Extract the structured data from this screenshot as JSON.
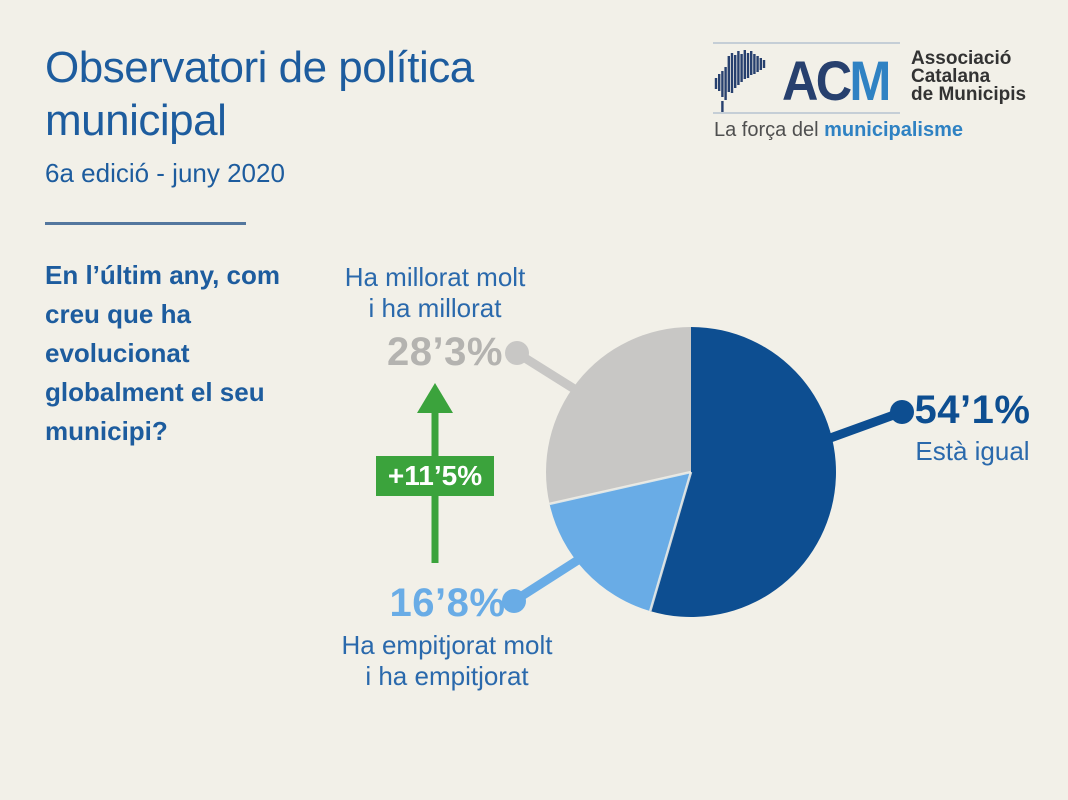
{
  "slide": {
    "title": "Observatori de política\nmunicipal",
    "subtitle": "6a edició - juny 2020",
    "question": "En l’últim any, com\ncreu que ha\nevolucionat\nglobalment el seu\nmunicipi?"
  },
  "logo": {
    "acronym_dark": "AC",
    "acronym_light": "M",
    "org_name": "Associació\nCatalana\nde Municipis",
    "tagline_prefix": "La força del ",
    "tagline_highlight": "municipalisme"
  },
  "chart_data": {
    "type": "pie",
    "title": "En l’últim any, com creu que ha evolucionat globalment el seu municipi?",
    "start_angle_deg": 0,
    "direction": "clockwise",
    "slices": [
      {
        "name": "Està igual",
        "display_label": "Està igual",
        "pct_label": "54’1%",
        "value": 54.1,
        "color": "#0d4e91"
      },
      {
        "name": "Ha empitjorat molt i ha empitjorat",
        "display_label": "Ha empitjorat molt\ni ha empitjorat",
        "pct_label": "16’8%",
        "value": 16.8,
        "color": "#69ace6"
      },
      {
        "name": "Ha millorat molt i ha millorat",
        "display_label": "Ha millorat molt\ni ha millorat",
        "pct_label": "28’3%",
        "value": 28.3,
        "color": "#c8c7c5"
      }
    ],
    "annotation": {
      "text": "+11’5%",
      "direction": "up",
      "color": "#3ba33c"
    },
    "legend": "none",
    "grid": false
  },
  "colors": {
    "background": "#f2f0e8",
    "title-blue": "#1d5c9e",
    "label-blue": "#2a69ac",
    "pct-gray": "#b4b3b0",
    "dark-blue": "#0d4e91",
    "light-blue": "#69ace6",
    "slice-gray": "#c8c7c5",
    "green": "#3ba33c",
    "rule-blue": "#54779e",
    "logo-navy": "#27406e",
    "logo-blue": "#2f82c3",
    "logo-text": "#333333",
    "tagline-gray": "#4f4f4f",
    "logo-line": "#c5ced6"
  }
}
